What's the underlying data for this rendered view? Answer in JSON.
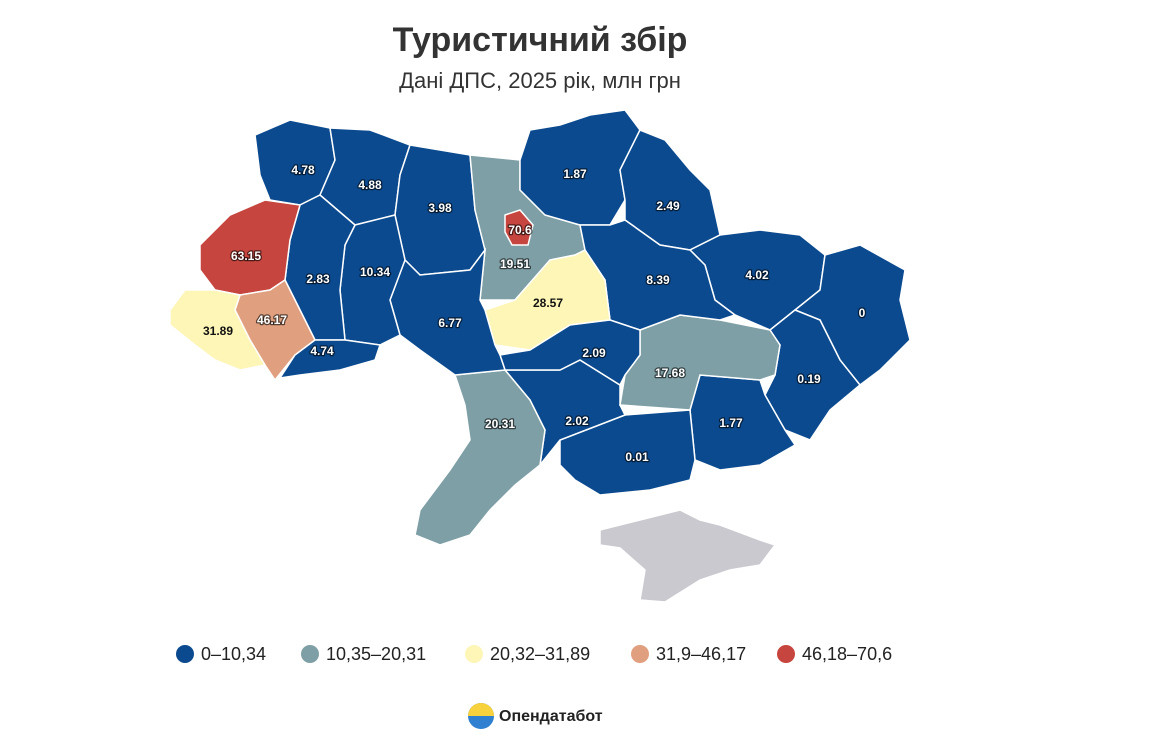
{
  "chart_data": {
    "type": "choropleth",
    "title": "Туристичний збір",
    "subtitle": "Дані ДПС, 2025 рік, млн грн",
    "regions": [
      {
        "value": 4.78
      },
      {
        "value": 4.88
      },
      {
        "value": 3.98
      },
      {
        "value": 19.51
      },
      {
        "value": 70.6
      },
      {
        "value": 1.87
      },
      {
        "value": 2.49
      },
      {
        "value": 4.02
      },
      {
        "value": 0
      },
      {
        "value": 0.19
      },
      {
        "value": 1.77
      },
      {
        "value": 0.01
      },
      {
        "value": 2.02
      },
      {
        "value": 17.68
      },
      {
        "value": 8.39
      },
      {
        "value": 28.57
      },
      {
        "value": 2.09
      },
      {
        "value": 20.31
      },
      {
        "value": 6.77
      },
      {
        "value": 10.34
      },
      {
        "value": 2.83
      },
      {
        "value": 63.15
      },
      {
        "value": 46.17
      },
      {
        "value": 31.89
      },
      {
        "value": 4.74
      }
    ],
    "legend": [
      {
        "label": "0–10,34",
        "min": 0,
        "max": 10.34,
        "color": "#0b4a8f"
      },
      {
        "label": "10,35–20,31",
        "min": 10.35,
        "max": 20.31,
        "color": "#7d9fa5"
      },
      {
        "label": "20,32–31,89",
        "min": 20.32,
        "max": 31.89,
        "color": "#fdf6b7"
      },
      {
        "label": "31,9–46,17",
        "min": 31.9,
        "max": 46.17,
        "color": "#e0a07f"
      },
      {
        "label": "46,18–70,6",
        "min": 46.18,
        "max": 70.6,
        "color": "#c6453e"
      }
    ]
  },
  "logo": {
    "brand": "Опендатабот"
  }
}
